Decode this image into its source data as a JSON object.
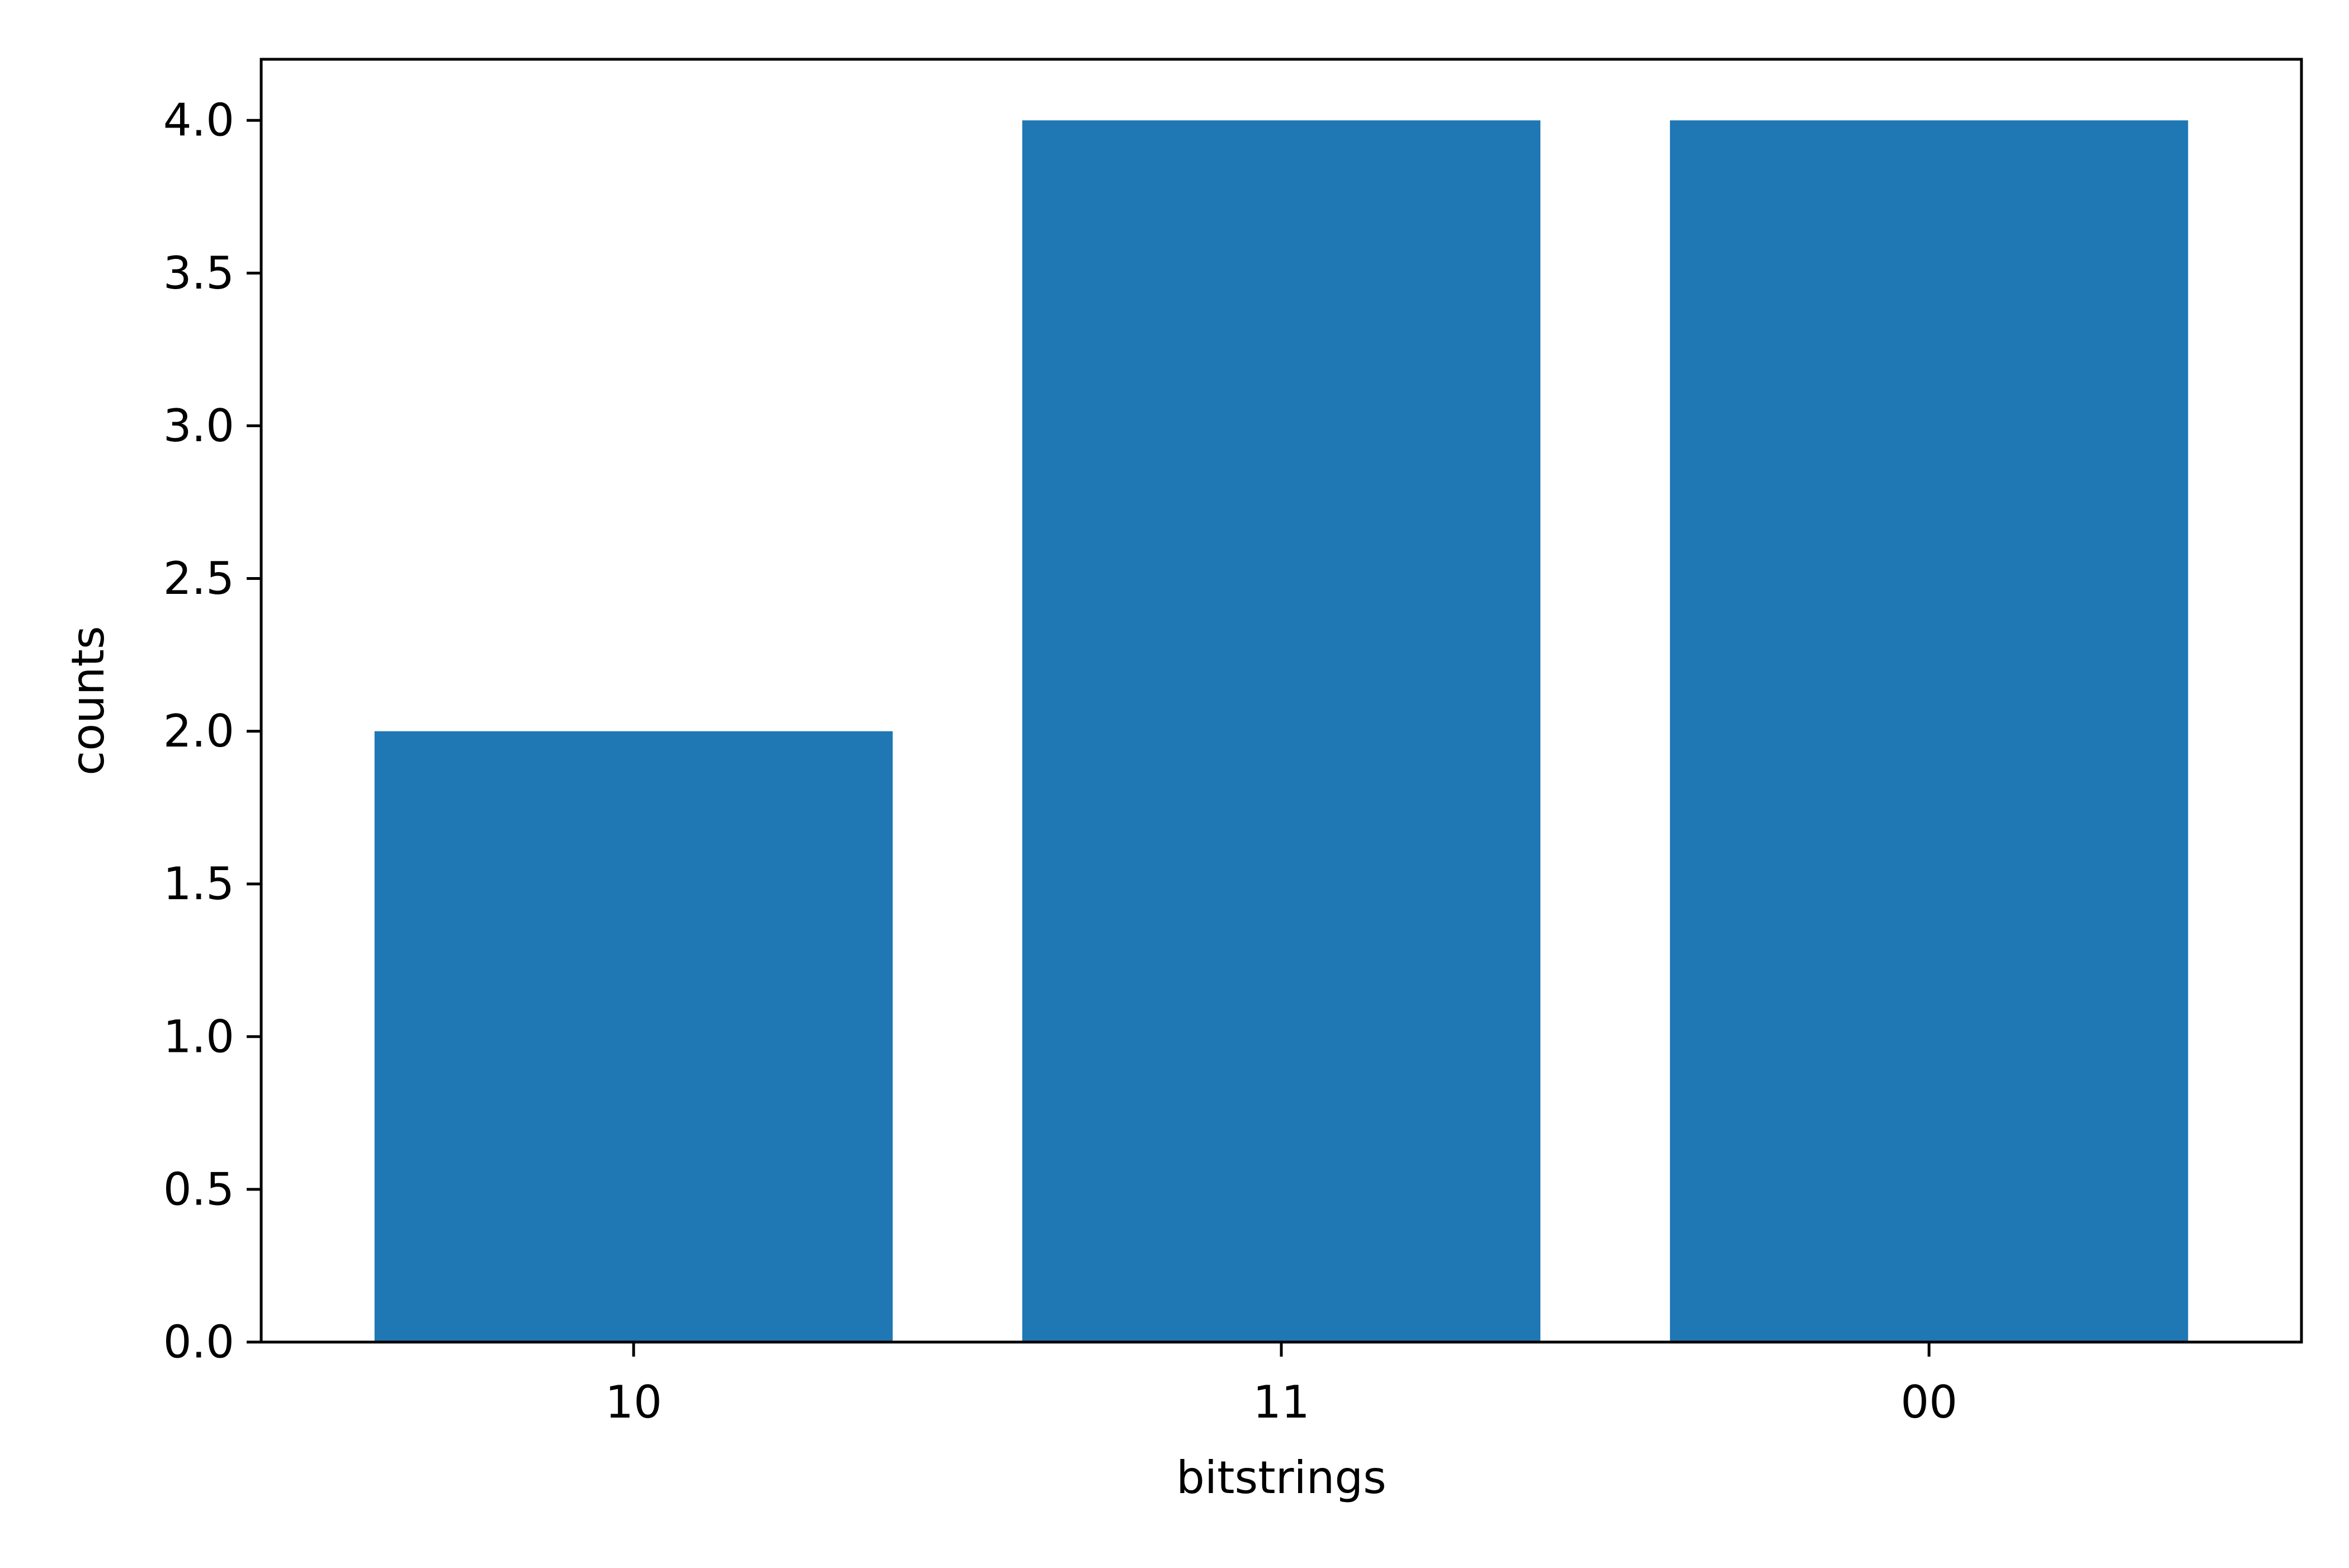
{
  "chart_data": {
    "type": "bar",
    "categories": [
      "10",
      "11",
      "00"
    ],
    "values": [
      2,
      4,
      4
    ],
    "xlabel": "bitstrings",
    "ylabel": "counts",
    "ylim": [
      0,
      4.2
    ],
    "yticks": [
      0.0,
      0.5,
      1.0,
      1.5,
      2.0,
      2.5,
      3.0,
      3.5,
      4.0
    ],
    "ytick_labels": [
      "0.0",
      "0.5",
      "1.0",
      "1.5",
      "2.0",
      "2.5",
      "3.0",
      "3.5",
      "4.0"
    ],
    "grid": false,
    "legend": "none",
    "colors": {
      "bar": "#1f77b4",
      "axes": "#000000",
      "background": "#ffffff"
    }
  }
}
